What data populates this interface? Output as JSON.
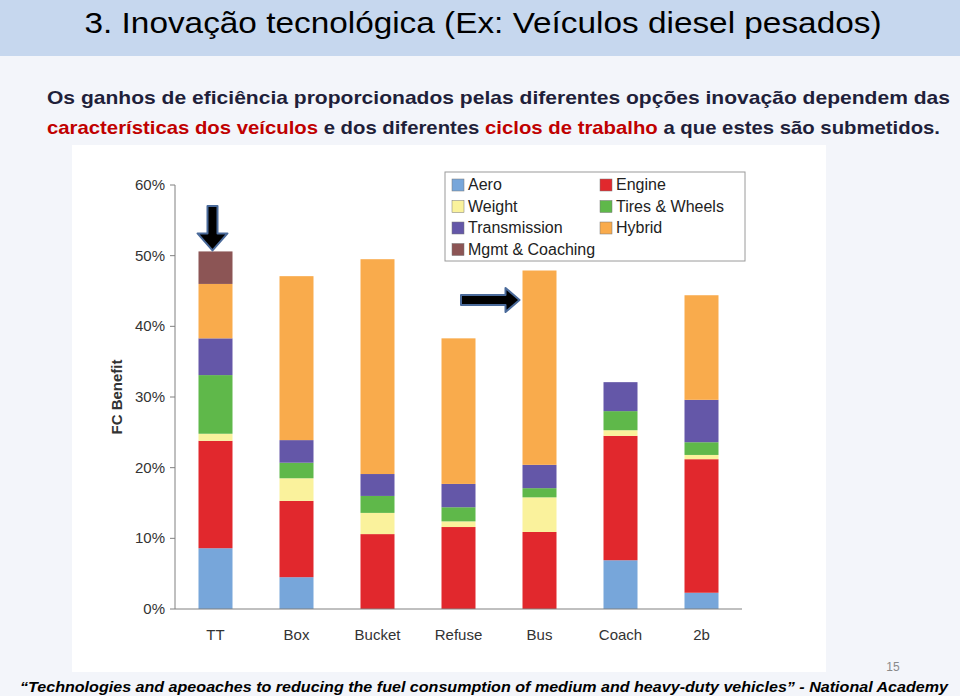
{
  "header": {
    "title": "3. Inovação tecnológica (Ex: Veículos diesel pesados)"
  },
  "subtitle": {
    "lines": [
      [
        {
          "text": "Os ganhos de eficiência proporcionados pelas diferentes opções inovação dependem das",
          "color": "#1f1f3a"
        }
      ],
      [
        {
          "text": "características dos veículos",
          "color": "#c00000"
        },
        {
          "text": " e dos diferentes ",
          "color": "#1f1f3a"
        },
        {
          "text": "ciclos de trabalho",
          "color": "#c00000"
        },
        {
          "text": " a que estes são submetidos.",
          "color": "#1f1f3a"
        }
      ]
    ]
  },
  "chart_data": {
    "type": "bar",
    "stacked": true,
    "grid": false,
    "legend": "upper right",
    "y_label": "FC Benefit",
    "categories": [
      "TT",
      "Box",
      "Bucket",
      "Refuse",
      "Bus",
      "Coach",
      "2b"
    ],
    "ylim": [
      0,
      60
    ],
    "yticks": [
      {
        "value": 0,
        "label": "0%"
      },
      {
        "value": 10,
        "label": "10%"
      },
      {
        "value": 20,
        "label": "20%"
      },
      {
        "value": 30,
        "label": "30%"
      },
      {
        "value": 40,
        "label": "40%"
      },
      {
        "value": 50,
        "label": "50%"
      },
      {
        "value": 60,
        "label": "60%"
      }
    ],
    "series": [
      {
        "name": "Aero",
        "color": "#77a6da",
        "values": [
          8.6,
          4.5,
          0,
          0,
          0,
          6.9,
          2.3
        ]
      },
      {
        "name": "Engine",
        "color": "#e1282d",
        "values": [
          15.2,
          10.8,
          10.6,
          11.6,
          10.9,
          17.6,
          18.9
        ]
      },
      {
        "name": "Weight",
        "color": "#faf29c",
        "values": [
          1.0,
          3.2,
          3.0,
          0.8,
          4.9,
          0.8,
          0.6
        ]
      },
      {
        "name": "Tires & Wheels",
        "color": "#5fb84a",
        "values": [
          8.3,
          2.2,
          2.4,
          2.0,
          1.3,
          2.7,
          1.8
        ]
      },
      {
        "name": "Transmission",
        "color": "#6457a8",
        "values": [
          5.2,
          3.2,
          3.1,
          3.3,
          3.3,
          4.1,
          6.0
        ]
      },
      {
        "name": "Hybrid",
        "color": "#f9ab4c",
        "values": [
          7.7,
          23.2,
          30.4,
          20.6,
          27.5,
          0,
          14.8
        ]
      },
      {
        "name": "Mgmt & Coaching",
        "color": "#8c5555",
        "values": [
          4.6,
          0,
          0,
          0,
          0,
          0,
          0
        ]
      }
    ]
  },
  "footer": {
    "source": "“Technologies and apeoaches to reducing the fuel consumption of medium and heavy-duty vehicles” - National Academy",
    "page_number": "15"
  }
}
